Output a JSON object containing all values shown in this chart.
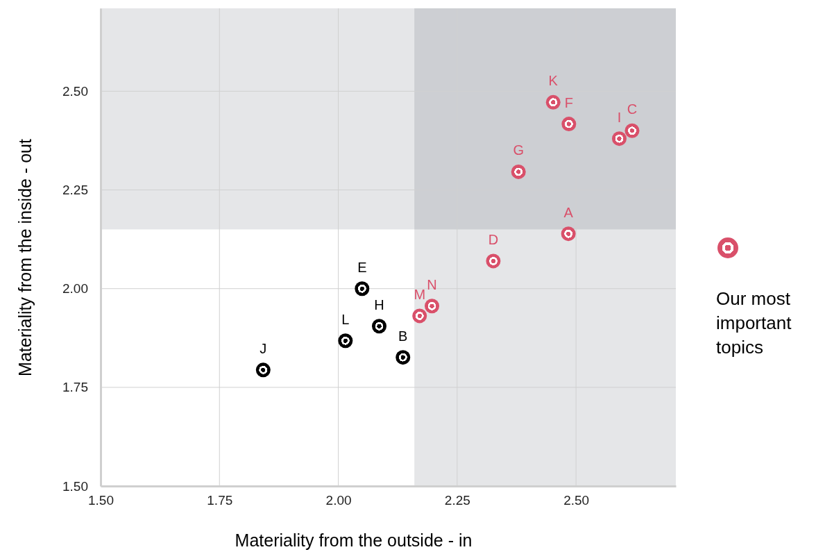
{
  "chart_data": {
    "type": "scatter",
    "xlabel": "Materiality from the outside - in",
    "ylabel": "Materiality from the inside - out",
    "xlim": [
      1.5,
      2.71
    ],
    "ylim": [
      1.5,
      2.71
    ],
    "xticks": [
      {
        "value": 1.5,
        "label": "1.50"
      },
      {
        "value": 1.75,
        "label": "1.75"
      },
      {
        "value": 2.0,
        "label": "2.00"
      },
      {
        "value": 2.25,
        "label": "2.25"
      },
      {
        "value": 2.5,
        "label": "2.50"
      }
    ],
    "yticks": [
      {
        "value": 1.5,
        "label": "1.50"
      },
      {
        "value": 1.75,
        "label": "1.75"
      },
      {
        "value": 2.0,
        "label": "2.00"
      },
      {
        "value": 2.25,
        "label": "2.25"
      },
      {
        "value": 2.5,
        "label": "2.50"
      }
    ],
    "grid": true,
    "legend": "right",
    "marker": "circle",
    "bands": [
      {
        "axis": "x",
        "from": 2.16,
        "to": 2.71,
        "color": "#e5e6e8"
      },
      {
        "axis": "y",
        "from": 2.15,
        "to": 2.71,
        "color": "#e5e6e8"
      }
    ],
    "series": [
      {
        "color": "#000000",
        "x": [
          1.842,
          2.015,
          2.05,
          2.086,
          2.136
        ],
        "values": [
          1.794,
          1.868,
          2.0,
          1.905,
          1.826
        ]
      },
      {
        "name": "Our most important topics",
        "color": "#d9506a",
        "x": [
          2.171,
          2.197,
          2.326,
          2.379,
          2.484,
          2.452,
          2.485,
          2.591,
          2.618
        ],
        "values": [
          1.931,
          1.956,
          2.07,
          2.296,
          2.139,
          2.472,
          2.417,
          2.38,
          2.4
        ]
      }
    ],
    "annotations": [
      {
        "text": "J",
        "x": 1.842,
        "y": 1.794
      },
      {
        "text": "L",
        "x": 2.015,
        "y": 1.868
      },
      {
        "text": "E",
        "x": 2.05,
        "y": 2.0
      },
      {
        "text": "H",
        "x": 2.086,
        "y": 1.905
      },
      {
        "text": "B",
        "x": 2.136,
        "y": 1.826
      },
      {
        "text": "M",
        "x": 2.171,
        "y": 1.931
      },
      {
        "text": "N",
        "x": 2.197,
        "y": 1.956
      },
      {
        "text": "D",
        "x": 2.326,
        "y": 2.07
      },
      {
        "text": "G",
        "x": 2.379,
        "y": 2.296
      },
      {
        "text": "A",
        "x": 2.484,
        "y": 2.139
      },
      {
        "text": "K",
        "x": 2.452,
        "y": 2.472
      },
      {
        "text": "F",
        "x": 2.485,
        "y": 2.417
      },
      {
        "text": "I",
        "x": 2.591,
        "y": 2.38
      },
      {
        "text": "C",
        "x": 2.618,
        "y": 2.4
      }
    ]
  }
}
